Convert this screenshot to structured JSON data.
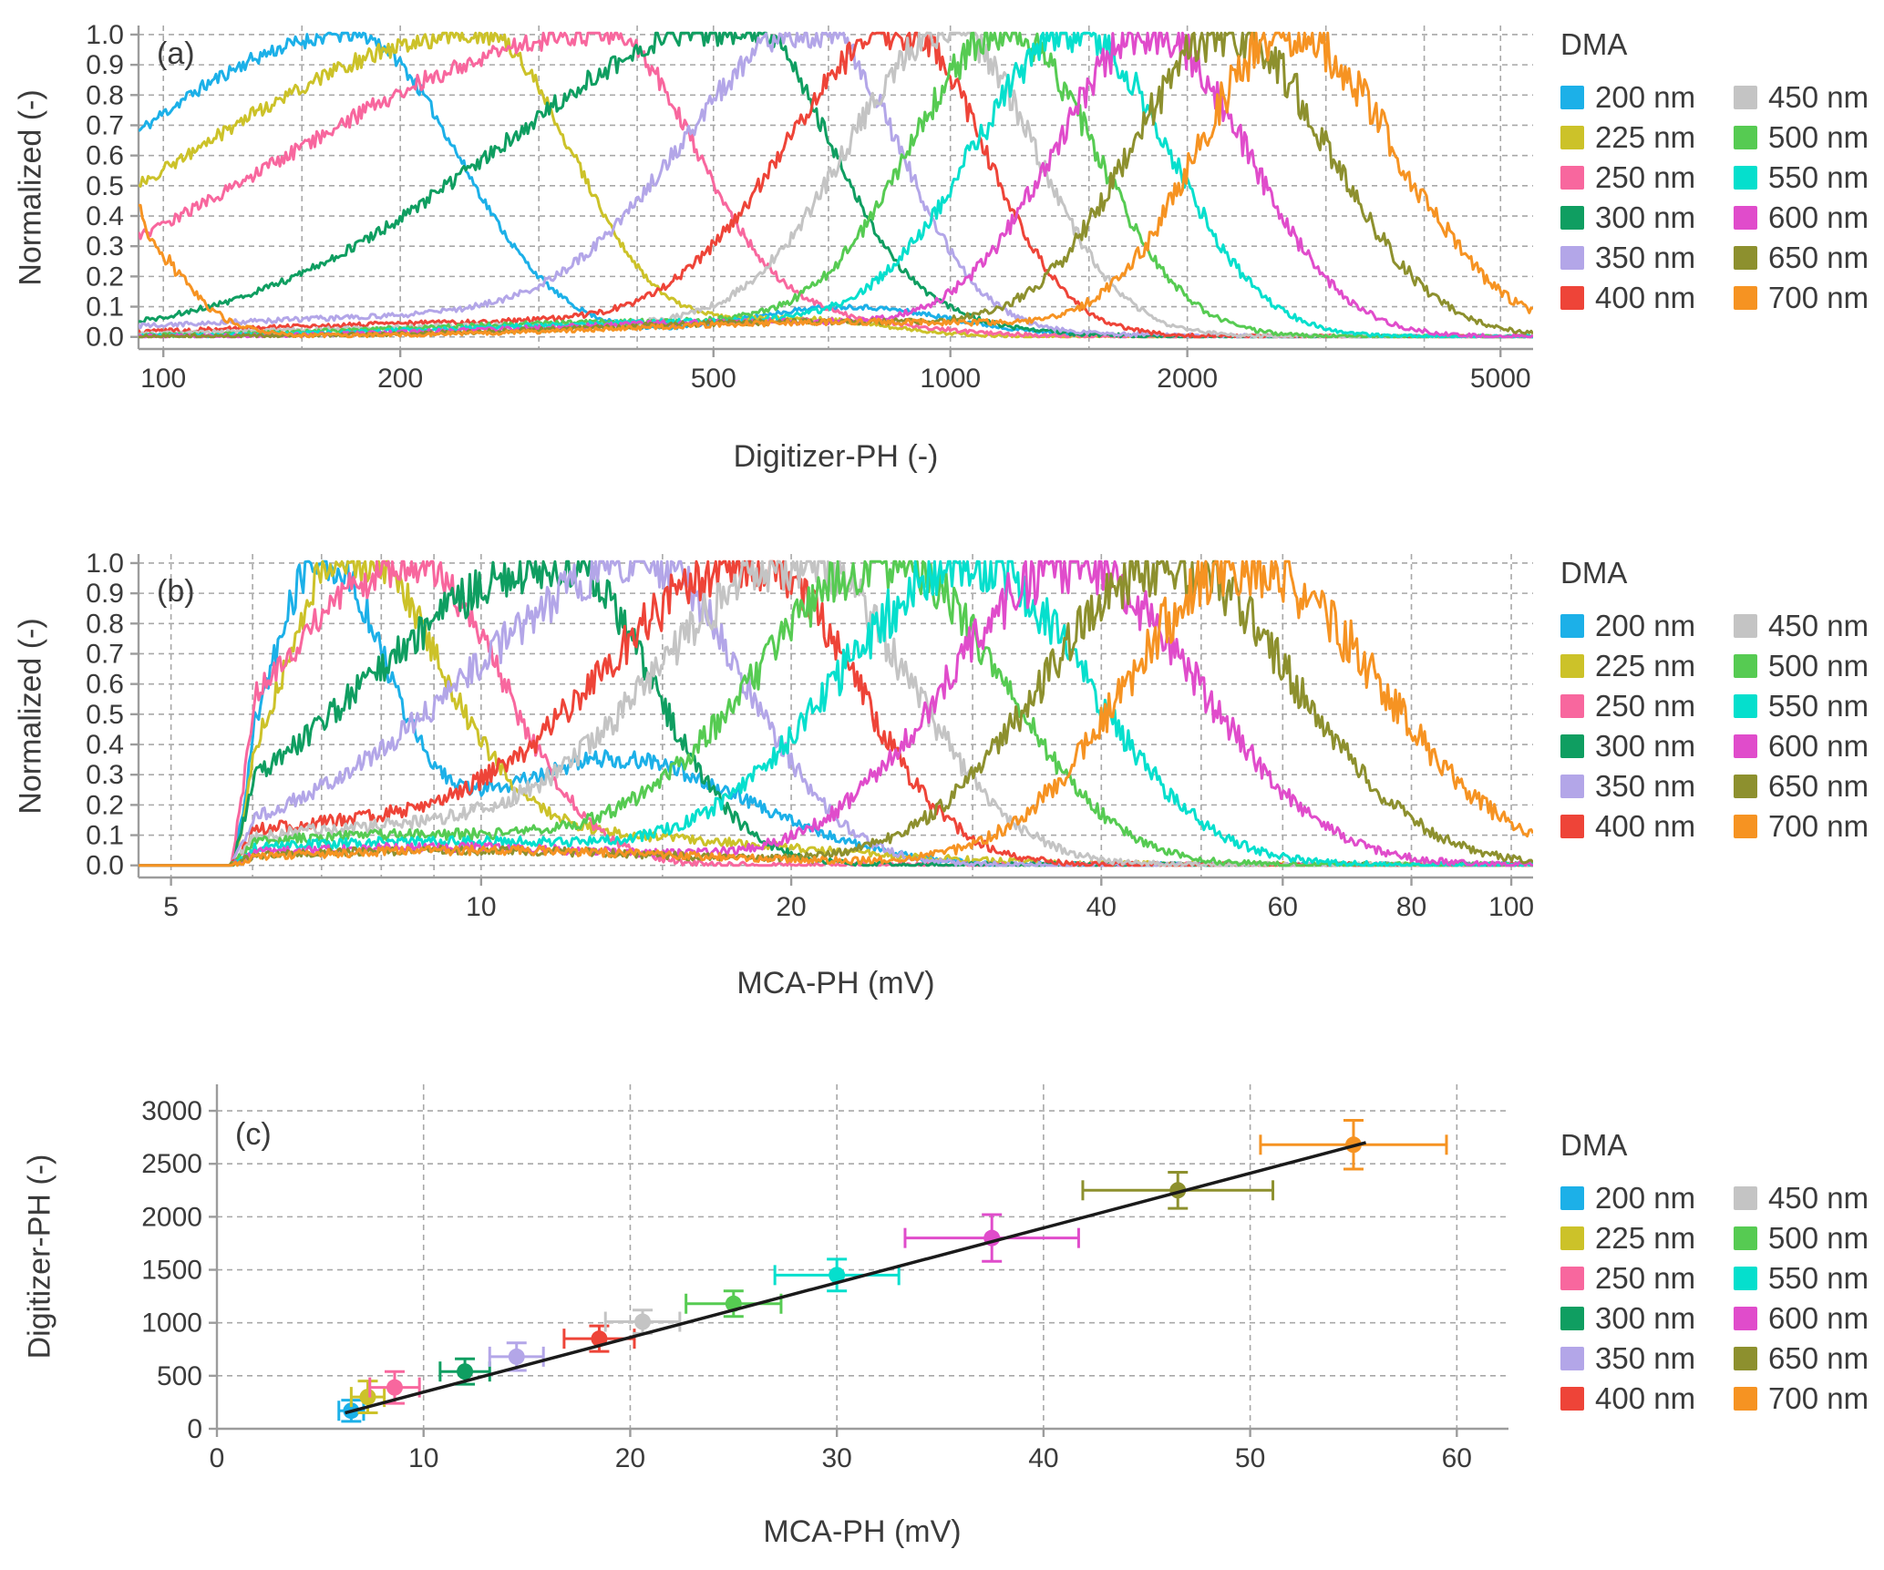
{
  "page": {
    "background": "#ffffff",
    "text_color": "#3b3b3b",
    "grid_color": "#a8a8a8",
    "axis_color": "#9c9c9c"
  },
  "legend": {
    "title": "DMA",
    "entries": [
      {
        "label": "200 nm",
        "color": "#1cb0e8"
      },
      {
        "label": "225 nm",
        "color": "#ccc229"
      },
      {
        "label": "250 nm",
        "color": "#f8679e"
      },
      {
        "label": "300 nm",
        "color": "#0f9e61"
      },
      {
        "label": "350 nm",
        "color": "#b3a6e8"
      },
      {
        "label": "400 nm",
        "color": "#ee4438"
      },
      {
        "label": "450 nm",
        "color": "#c4c4c4"
      },
      {
        "label": "500 nm",
        "color": "#56cb52"
      },
      {
        "label": "550 nm",
        "color": "#05dfcd"
      },
      {
        "label": "600 nm",
        "color": "#e04ccb"
      },
      {
        "label": "650 nm",
        "color": "#8d902e"
      },
      {
        "label": "700 nm",
        "color": "#f69322"
      }
    ]
  },
  "panels": {
    "a": {
      "tag": "(a)",
      "xlabel": "Digitizer-PH (-)",
      "ylabel": "Normalized (-)",
      "xscale": "log",
      "xlim": [
        93,
        5500
      ],
      "ylim": [
        -0.04,
        1.03
      ],
      "xticks": {
        "values": [
          100,
          200,
          500,
          1000,
          2000,
          5000
        ],
        "labels": [
          "100",
          "200",
          "500",
          "1000",
          "2000",
          "5000"
        ]
      },
      "grid_x": [
        100,
        150,
        200,
        300,
        400,
        500,
        700,
        1000,
        1500,
        2000,
        3000,
        4000,
        5000
      ],
      "yticks": {
        "values": [
          0,
          0.1,
          0.2,
          0.3,
          0.4,
          0.5,
          0.6,
          0.7,
          0.8,
          0.9,
          1.0
        ],
        "labels": [
          "0.0",
          "0.1",
          "0.2",
          "0.3",
          "0.4",
          "0.5",
          "0.6",
          "0.7",
          "0.8",
          "0.9",
          "1.0"
        ]
      }
    },
    "b": {
      "tag": "(b)",
      "xlabel": "MCA-PH (mV)",
      "ylabel": "Normalized (-)",
      "xscale": "log",
      "xlim": [
        4.65,
        105
      ],
      "ylim": [
        -0.04,
        1.03
      ],
      "xticks": {
        "values": [
          5,
          10,
          20,
          40,
          60,
          80,
          100
        ],
        "labels": [
          "5",
          "10",
          "20",
          "40",
          "60",
          "80",
          "100"
        ]
      },
      "grid_x": [
        5,
        6,
        7,
        8,
        9,
        10,
        15,
        20,
        30,
        40,
        50,
        60,
        80,
        100
      ],
      "yticks": {
        "values": [
          0,
          0.1,
          0.2,
          0.3,
          0.4,
          0.5,
          0.6,
          0.7,
          0.8,
          0.9,
          1.0
        ],
        "labels": [
          "0.0",
          "0.1",
          "0.2",
          "0.3",
          "0.4",
          "0.5",
          "0.6",
          "0.7",
          "0.8",
          "0.9",
          "1.0"
        ]
      }
    },
    "c": {
      "tag": "(c)",
      "xlabel": "MCA-PH (mV)",
      "ylabel": "Digitizer-PH (-)",
      "xscale": "linear",
      "xlim": [
        0,
        62.5
      ],
      "ylim": [
        0,
        3250
      ],
      "xticks": {
        "values": [
          0,
          10,
          20,
          30,
          40,
          50,
          60
        ],
        "labels": [
          "0",
          "10",
          "20",
          "30",
          "40",
          "50",
          "60"
        ]
      },
      "grid_x": [
        10,
        20,
        30,
        40,
        50,
        60
      ],
      "yticks": {
        "values": [
          0,
          500,
          1000,
          1500,
          2000,
          2500,
          3000
        ],
        "labels": [
          "0",
          "500",
          "1000",
          "1500",
          "2000",
          "2500",
          "3000"
        ]
      },
      "grid_y": [
        500,
        1000,
        1500,
        2000,
        2500,
        3000
      ]
    }
  },
  "chart_data": [
    {
      "panel": "a",
      "type": "line",
      "xscale": "log",
      "title": "Normalized pulse-height distributions vs Digitizer-PH",
      "series": [
        {
          "name": "200 nm",
          "color": "#1cb0e8",
          "peak": 175,
          "sigma_left": 0.72,
          "sigma_right": 0.3,
          "noise": 0.02,
          "bumps": [
            {
              "x": 740,
              "h": 0.1,
              "s": 0.3
            }
          ]
        },
        {
          "name": "225 nm",
          "color": "#ccc229",
          "peak": 255,
          "sigma_left": 0.86,
          "sigma_right": 0.26,
          "noise": 0.025,
          "bumps": [
            {
              "x": 640,
              "h": 0.06,
              "s": 0.25
            }
          ]
        },
        {
          "name": "250 nm",
          "color": "#f8679e",
          "peak": 365,
          "sigma_left": 0.92,
          "sigma_right": 0.26,
          "noise": 0.03,
          "bumps": [
            {
              "x": 690,
              "h": 0.05,
              "s": 0.3
            }
          ]
        },
        {
          "name": "300 nm",
          "color": "#0f9e61",
          "peak": 535,
          "sigma_left": 0.72,
          "sigma_right": 0.25,
          "noise": 0.035,
          "bumps": [
            {
              "x": 700,
              "h": 0.09,
              "s": 0.35
            }
          ]
        },
        {
          "name": "350 nm",
          "color": "#b3a6e8",
          "peak": 675,
          "sigma_left": 0.38,
          "sigma_right": 0.24,
          "noise": 0.04,
          "bumps": [
            {
              "x": 260,
              "h": 0.07,
              "s": 0.9
            }
          ]
        },
        {
          "name": "400 nm",
          "color": "#ee4438",
          "peak": 870,
          "sigma_left": 0.34,
          "sigma_right": 0.24,
          "noise": 0.045,
          "bumps": [
            {
              "x": 300,
              "h": 0.05,
              "s": 0.8
            }
          ]
        },
        {
          "name": "450 nm",
          "color": "#c4c4c4",
          "peak": 1000,
          "sigma_left": 0.3,
          "sigma_right": 0.25,
          "noise": 0.05,
          "bumps": [
            {
              "x": 350,
              "h": 0.04,
              "s": 0.8
            }
          ]
        },
        {
          "name": "500 nm",
          "color": "#56cb52",
          "peak": 1180,
          "sigma_left": 0.28,
          "sigma_right": 0.26,
          "noise": 0.055,
          "bumps": [
            {
              "x": 420,
              "h": 0.05,
              "s": 0.7
            }
          ]
        },
        {
          "name": "550 nm",
          "color": "#05dfcd",
          "peak": 1450,
          "sigma_left": 0.3,
          "sigma_right": 0.27,
          "noise": 0.06,
          "bumps": [
            {
              "x": 500,
              "h": 0.05,
              "s": 0.7
            }
          ]
        },
        {
          "name": "600 nm",
          "color": "#e04ccb",
          "peak": 1800,
          "sigma_left": 0.28,
          "sigma_right": 0.28,
          "noise": 0.065,
          "bumps": [
            {
              "x": 600,
              "h": 0.05,
              "s": 0.7
            }
          ]
        },
        {
          "name": "650 nm",
          "color": "#8d902e",
          "peak": 2250,
          "sigma_left": 0.28,
          "sigma_right": 0.3,
          "noise": 0.075,
          "bumps": [
            {
              "x": 700,
              "h": 0.05,
              "s": 0.7
            }
          ]
        },
        {
          "name": "700 nm",
          "color": "#f69322",
          "peak": 2680,
          "sigma_left": 0.26,
          "sigma_right": 0.32,
          "noise": 0.08,
          "bumps": [
            {
              "x": 78,
              "h": 0.6,
              "s": 0.2
            },
            {
              "x": 800,
              "h": 0.05,
              "s": 0.7
            }
          ]
        }
      ]
    },
    {
      "panel": "b",
      "type": "line",
      "xscale": "log",
      "title": "Normalized pulse-height distributions vs MCA-PH",
      "onset_x": 5.72,
      "onset_width": 0.3,
      "series": [
        {
          "name": "200 nm",
          "color": "#1cb0e8",
          "peak": 7.0,
          "sigma_left": 0.12,
          "sigma_right": 0.14,
          "noise": 0.06,
          "bumps": [
            {
              "x": 13.5,
              "h": 0.35,
              "s": 0.3
            }
          ]
        },
        {
          "name": "225 nm",
          "color": "#ccc229",
          "peak": 7.4,
          "sigma_left": 0.14,
          "sigma_right": 0.2,
          "noise": 0.06,
          "bumps": [
            {
              "x": 12,
              "h": 0.1,
              "s": 0.5
            }
          ]
        },
        {
          "name": "250 nm",
          "color": "#f8679e",
          "peak": 8.6,
          "sigma_left": 0.33,
          "sigma_right": 0.2,
          "noise": 0.06,
          "bumps": []
        },
        {
          "name": "300 nm",
          "color": "#0f9e61",
          "peak": 12,
          "sigma_left": 0.44,
          "sigma_right": 0.2,
          "noise": 0.07,
          "bumps": []
        },
        {
          "name": "350 nm",
          "color": "#b3a6e8",
          "peak": 14.5,
          "sigma_left": 0.38,
          "sigma_right": 0.22,
          "noise": 0.07,
          "bumps": [
            {
              "x": 7,
              "h": 0.1,
              "s": 0.3
            }
          ]
        },
        {
          "name": "400 nm",
          "color": "#ee4438",
          "peak": 18.5,
          "sigma_left": 0.33,
          "sigma_right": 0.22,
          "noise": 0.08,
          "bumps": [
            {
              "x": 7.5,
              "h": 0.13,
              "s": 0.45
            }
          ]
        },
        {
          "name": "450 nm",
          "color": "#c4c4c4",
          "peak": 20.5,
          "sigma_left": 0.32,
          "sigma_right": 0.24,
          "noise": 0.08,
          "bumps": [
            {
              "x": 8,
              "h": 0.12,
              "s": 0.45
            }
          ]
        },
        {
          "name": "500 nm",
          "color": "#56cb52",
          "peak": 25,
          "sigma_left": 0.3,
          "sigma_right": 0.25,
          "noise": 0.08,
          "bumps": [
            {
              "x": 8.5,
              "h": 0.1,
              "s": 0.5
            }
          ]
        },
        {
          "name": "550 nm",
          "color": "#05dfcd",
          "peak": 30,
          "sigma_left": 0.3,
          "sigma_right": 0.26,
          "noise": 0.09,
          "bumps": [
            {
              "x": 9,
              "h": 0.08,
              "s": 0.5
            }
          ]
        },
        {
          "name": "600 nm",
          "color": "#e04ccb",
          "peak": 37.5,
          "sigma_left": 0.28,
          "sigma_right": 0.28,
          "noise": 0.09,
          "bumps": [
            {
              "x": 9,
              "h": 0.06,
              "s": 0.5
            }
          ]
        },
        {
          "name": "650 nm",
          "color": "#8d902e",
          "peak": 46.5,
          "sigma_left": 0.28,
          "sigma_right": 0.28,
          "noise": 0.09,
          "bumps": [
            {
              "x": 9.5,
              "h": 0.05,
              "s": 0.5
            }
          ]
        },
        {
          "name": "700 nm",
          "color": "#f69322",
          "peak": 55,
          "sigma_left": 0.26,
          "sigma_right": 0.3,
          "noise": 0.1,
          "bumps": [
            {
              "x": 10,
              "h": 0.05,
              "s": 0.5
            }
          ]
        }
      ]
    },
    {
      "panel": "c",
      "type": "scatter",
      "title": "Digitizer-PH vs MCA-PH calibration",
      "points": [
        {
          "name": "200 nm",
          "color": "#1cb0e8",
          "x": 6.5,
          "y": 170,
          "xerr": 0.6,
          "yerr": 100
        },
        {
          "name": "225 nm",
          "color": "#ccc229",
          "x": 7.3,
          "y": 300,
          "xerr": 0.8,
          "yerr": 150
        },
        {
          "name": "250 nm",
          "color": "#f8679e",
          "x": 8.6,
          "y": 390,
          "xerr": 1.2,
          "yerr": 150
        },
        {
          "name": "300 nm",
          "color": "#0f9e61",
          "x": 12,
          "y": 540,
          "xerr": 1.2,
          "yerr": 120
        },
        {
          "name": "350 nm",
          "color": "#b3a6e8",
          "x": 14.5,
          "y": 680,
          "xerr": 1.3,
          "yerr": 130
        },
        {
          "name": "400 nm",
          "color": "#ee4438",
          "x": 18.5,
          "y": 850,
          "xerr": 1.7,
          "yerr": 120
        },
        {
          "name": "450 nm",
          "color": "#c4c4c4",
          "x": 20.6,
          "y": 1010,
          "xerr": 1.8,
          "yerr": 110
        },
        {
          "name": "500 nm",
          "color": "#56cb52",
          "x": 25,
          "y": 1180,
          "xerr": 2.3,
          "yerr": 120
        },
        {
          "name": "550 nm",
          "color": "#05dfcd",
          "x": 30,
          "y": 1450,
          "xerr": 3.0,
          "yerr": 150
        },
        {
          "name": "600 nm",
          "color": "#e04ccb",
          "x": 37.5,
          "y": 1800,
          "xerr": 4.2,
          "yerr": 220
        },
        {
          "name": "650 nm",
          "color": "#8d902e",
          "x": 46.5,
          "y": 2250,
          "xerr": 4.6,
          "yerr": 170
        },
        {
          "name": "700 nm",
          "color": "#f69322",
          "x": 55,
          "y": 2680,
          "xerr": 4.5,
          "yerr": 230
        }
      ],
      "fit": {
        "x1": 6.2,
        "y1": 150,
        "x2": 55.6,
        "y2": 2700,
        "color": "#1a1a1a"
      }
    }
  ]
}
